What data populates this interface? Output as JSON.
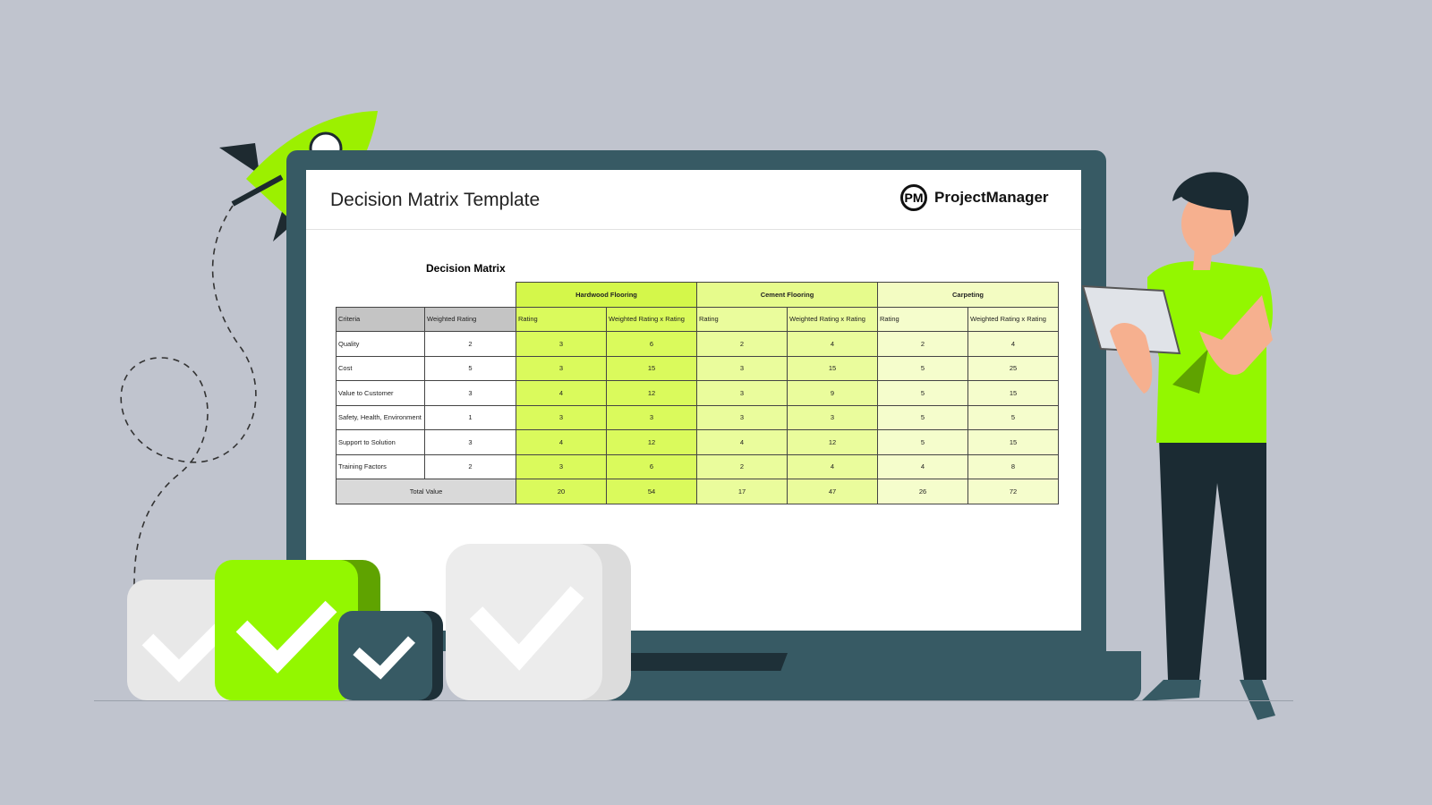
{
  "screen": {
    "title": "Decision Matrix Template",
    "logo_mark": "PM",
    "logo_text": "ProjectManager"
  },
  "matrix": {
    "title": "Decision Matrix",
    "options": [
      "Hardwood Flooring",
      "Cement Flooring",
      "Carpeting"
    ],
    "headers": {
      "criteria": "Criteria",
      "weighted": "Weighted Rating",
      "rating": "Rating",
      "product": "Weighted Rating x Rating"
    },
    "rows": [
      {
        "criteria": "Quality",
        "weight": "2",
        "values": [
          "3",
          "6",
          "2",
          "4",
          "2",
          "4"
        ]
      },
      {
        "criteria": "Cost",
        "weight": "5",
        "values": [
          "3",
          "15",
          "3",
          "15",
          "5",
          "25"
        ]
      },
      {
        "criteria": "Value to Customer",
        "weight": "3",
        "values": [
          "4",
          "12",
          "3",
          "9",
          "5",
          "15"
        ]
      },
      {
        "criteria": "Safety, Health, Environment",
        "weight": "1",
        "values": [
          "3",
          "3",
          "3",
          "3",
          "5",
          "5"
        ]
      },
      {
        "criteria": "Support to Solution",
        "weight": "3",
        "values": [
          "4",
          "12",
          "4",
          "12",
          "5",
          "15"
        ]
      },
      {
        "criteria": "Training Factors",
        "weight": "2",
        "values": [
          "3",
          "6",
          "2",
          "4",
          "4",
          "8"
        ]
      }
    ],
    "total": {
      "label": "Total Value",
      "values": [
        "20",
        "54",
        "17",
        "47",
        "26",
        "72"
      ]
    }
  },
  "colors": {
    "background": "#c0c4ce",
    "laptop": "#375a64",
    "accent_green": "#93f700",
    "hardwood": "#dafa5c",
    "cement": "#eafc9c",
    "carpeting": "#f5fdcc"
  }
}
